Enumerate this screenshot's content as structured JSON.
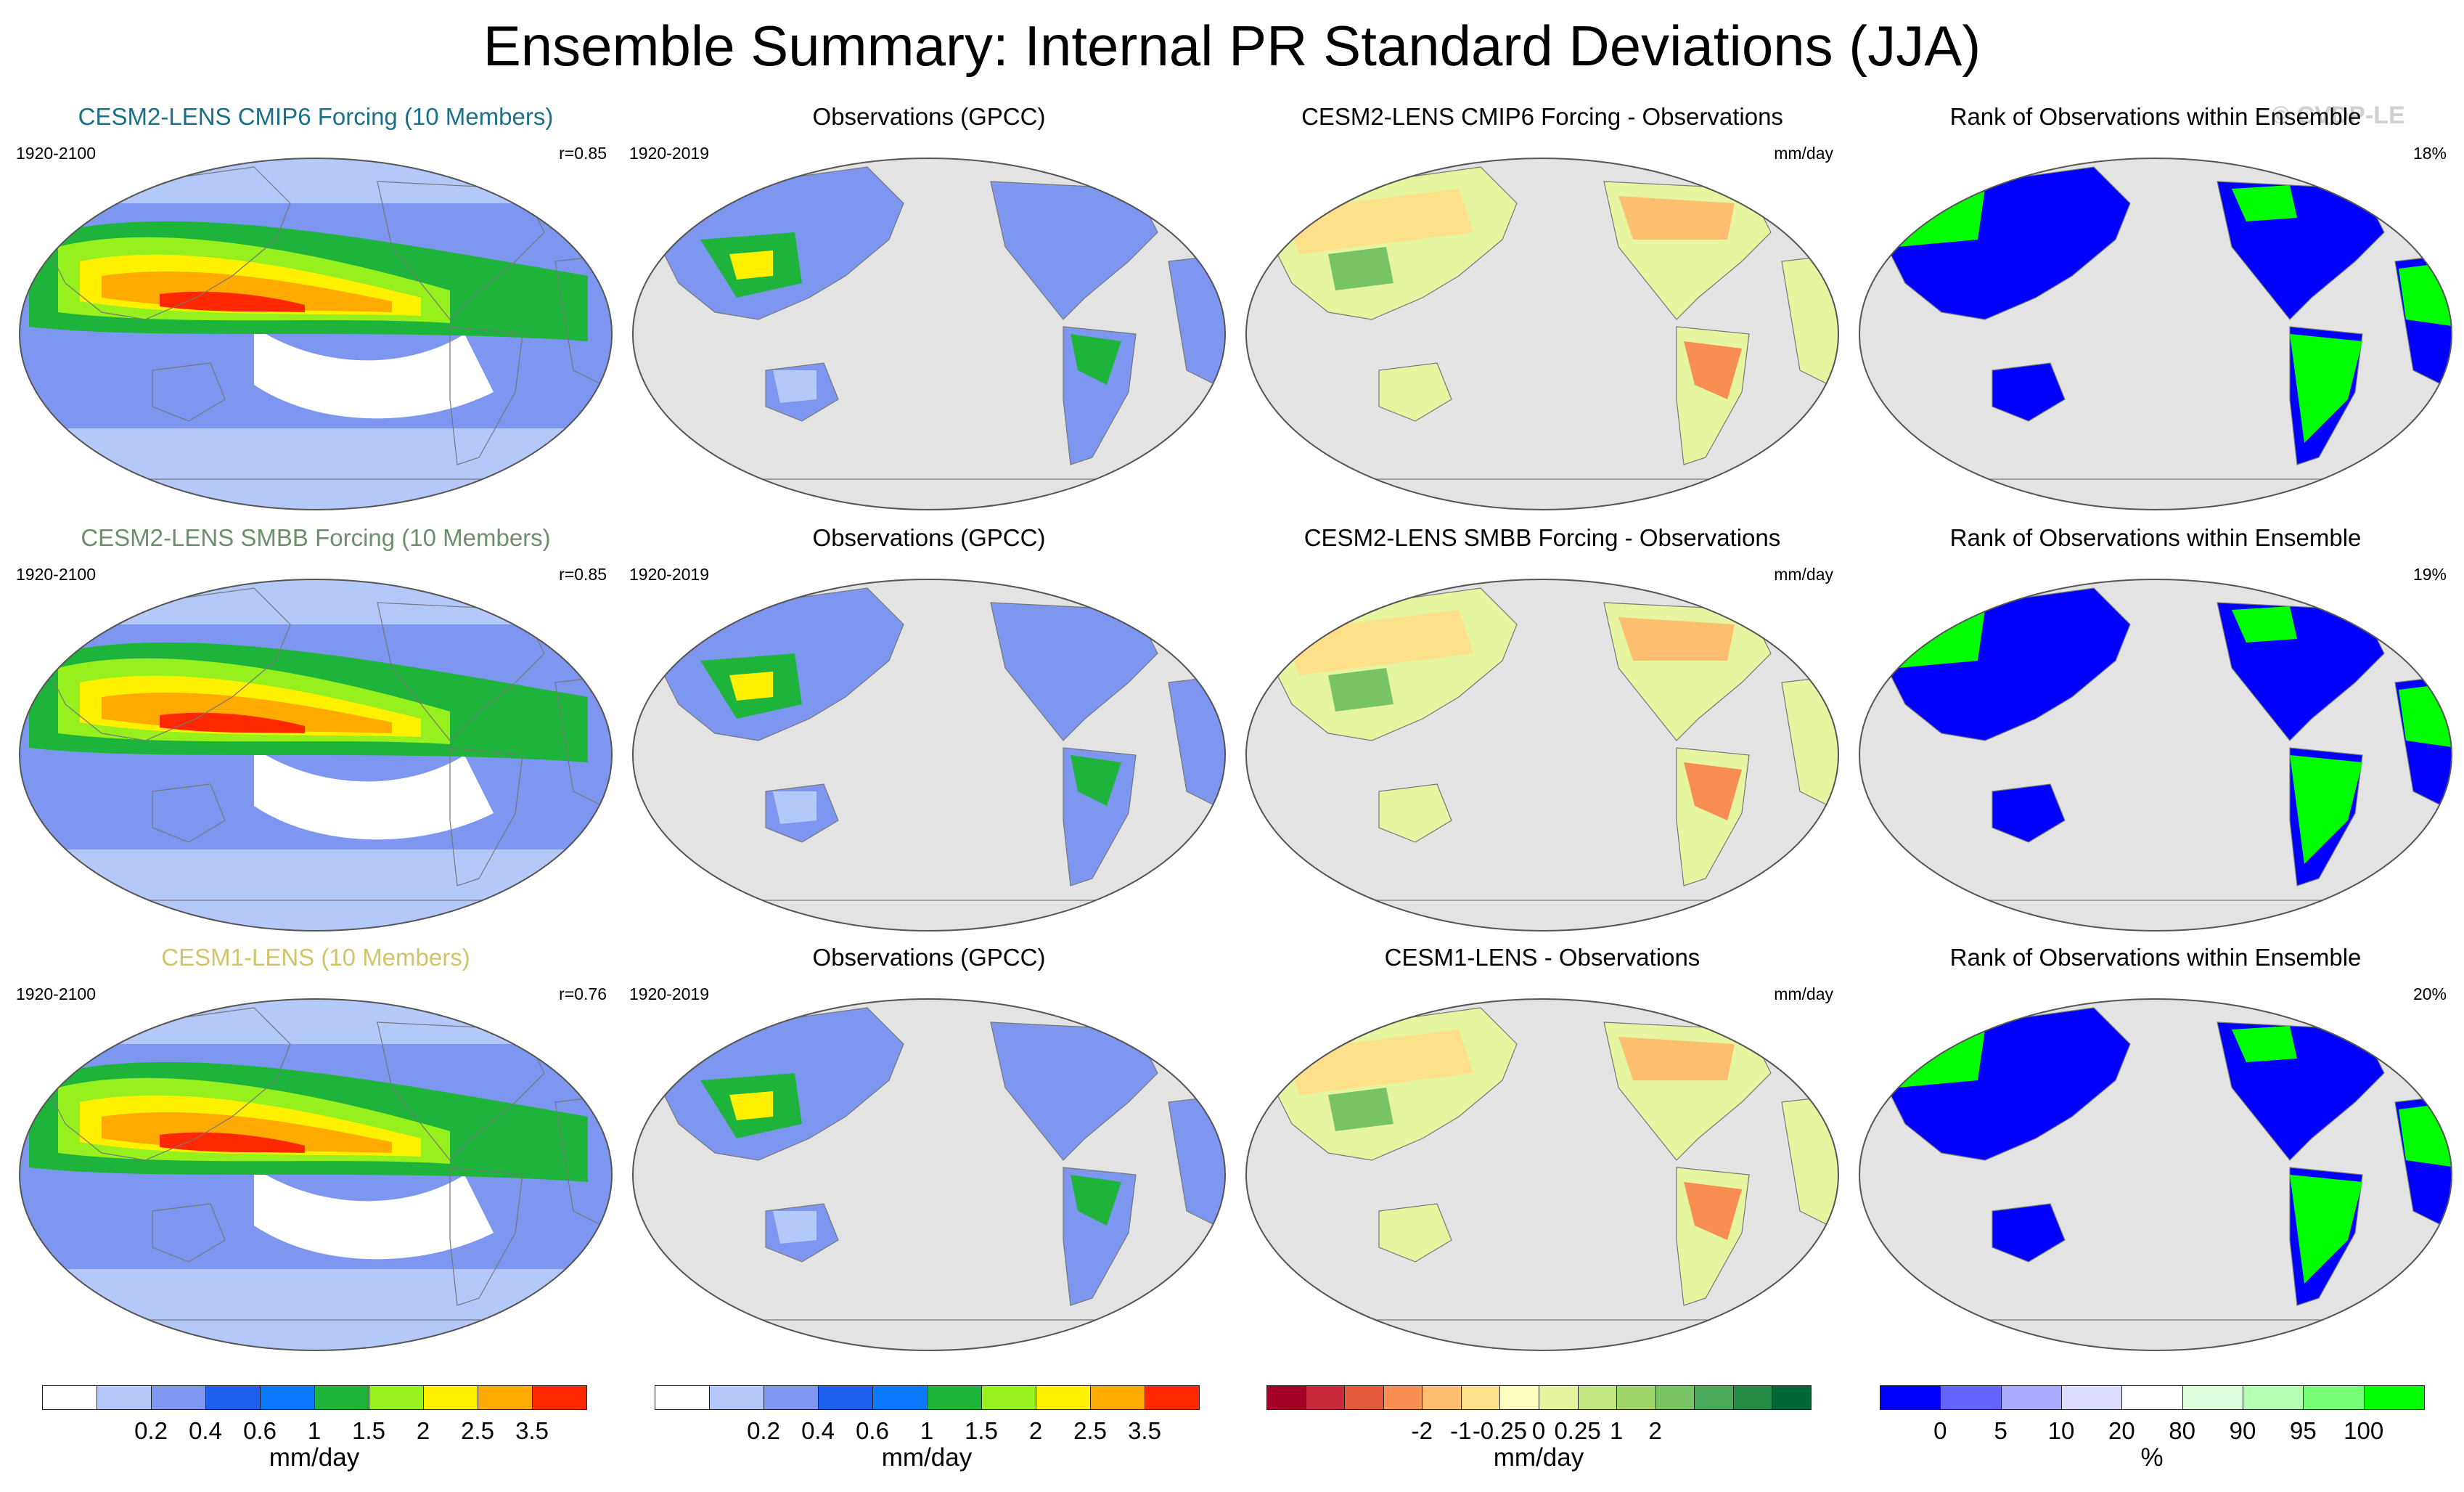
{
  "title": "Ensemble Summary: Internal PR Standard Deviations (JJA)",
  "watermark": "© CVDP-LE",
  "colors": {
    "ocean_gray": "#e3e3e3",
    "row_title": [
      "#1b6f86",
      "#6d8f6d",
      "#d2c46a"
    ]
  },
  "rows": [
    {
      "panels": [
        {
          "title": "CESM2-LENS CMIP6 Forcing (10 Members)",
          "left": "1920-2100",
          "right": "r=0.85",
          "kind": "model"
        },
        {
          "title": "Observations (GPCC)",
          "left": "1920-2019",
          "right": "",
          "kind": "obs"
        },
        {
          "title": "CESM2-LENS CMIP6 Forcing - Observations",
          "left": "",
          "right": "mm/day",
          "kind": "diff"
        },
        {
          "title": "Rank of Observations within Ensemble",
          "left": "",
          "right": "18%",
          "kind": "rank"
        }
      ]
    },
    {
      "panels": [
        {
          "title": "CESM2-LENS SMBB Forcing (10 Members)",
          "left": "1920-2100",
          "right": "r=0.85",
          "kind": "model"
        },
        {
          "title": "Observations (GPCC)",
          "left": "1920-2019",
          "right": "",
          "kind": "obs"
        },
        {
          "title": "CESM2-LENS SMBB Forcing - Observations",
          "left": "",
          "right": "mm/day",
          "kind": "diff"
        },
        {
          "title": "Rank of Observations within Ensemble",
          "left": "",
          "right": "19%",
          "kind": "rank"
        }
      ]
    },
    {
      "panels": [
        {
          "title": "CESM1-LENS (10 Members)",
          "left": "1920-2100",
          "right": "r=0.76",
          "kind": "model"
        },
        {
          "title": "Observations (GPCC)",
          "left": "1920-2019",
          "right": "",
          "kind": "obs"
        },
        {
          "title": "CESM1-LENS - Observations",
          "left": "",
          "right": "mm/day",
          "kind": "diff"
        },
        {
          "title": "Rank of Observations within Ensemble",
          "left": "",
          "right": "20%",
          "kind": "rank"
        }
      ]
    }
  ],
  "chart_data": {
    "type": "heatmap",
    "colorbars": [
      {
        "unit": "mm/day",
        "colors": [
          "#ffffff",
          "#b4c8fa",
          "#7d96f0",
          "#1e5ff0",
          "#0a78ff",
          "#1eb43c",
          "#96f01e",
          "#fff000",
          "#ffaa00",
          "#ff2800"
        ],
        "ticks": [
          "0.2",
          "0.4",
          "0.6",
          "1",
          "1.5",
          "2",
          "2.5",
          "3.5"
        ]
      },
      {
        "unit": "mm/day",
        "colors": [
          "#ffffff",
          "#b4c8fa",
          "#7d96f0",
          "#1e5ff0",
          "#0a78ff",
          "#1eb43c",
          "#96f01e",
          "#fff000",
          "#ffaa00",
          "#ff2800"
        ],
        "ticks": [
          "0.2",
          "0.4",
          "0.6",
          "1",
          "1.5",
          "2",
          "2.5",
          "3.5"
        ]
      },
      {
        "unit": "mm/day",
        "colors": [
          "#a50026",
          "#c8283c",
          "#e65a3c",
          "#f98e52",
          "#fdbf6f",
          "#fee08b",
          "#ffffbf",
          "#e6f5a0",
          "#c3e582",
          "#a0d669",
          "#78c364",
          "#4ba95a",
          "#238b45",
          "#006837"
        ],
        "ticks": [
          "-2",
          "-1",
          "-0.25",
          "0",
          "0.25",
          "1",
          "2"
        ]
      },
      {
        "unit": "%",
        "colors": [
          "#0000ff",
          "#6464ff",
          "#aaaaff",
          "#dcdcff",
          "#ffffff",
          "#dcffdc",
          "#b4ffb4",
          "#78ff78",
          "#00ff00"
        ],
        "ticks": [
          "0",
          "5",
          "10",
          "20",
          "80",
          "90",
          "95",
          "100"
        ]
      }
    ]
  }
}
